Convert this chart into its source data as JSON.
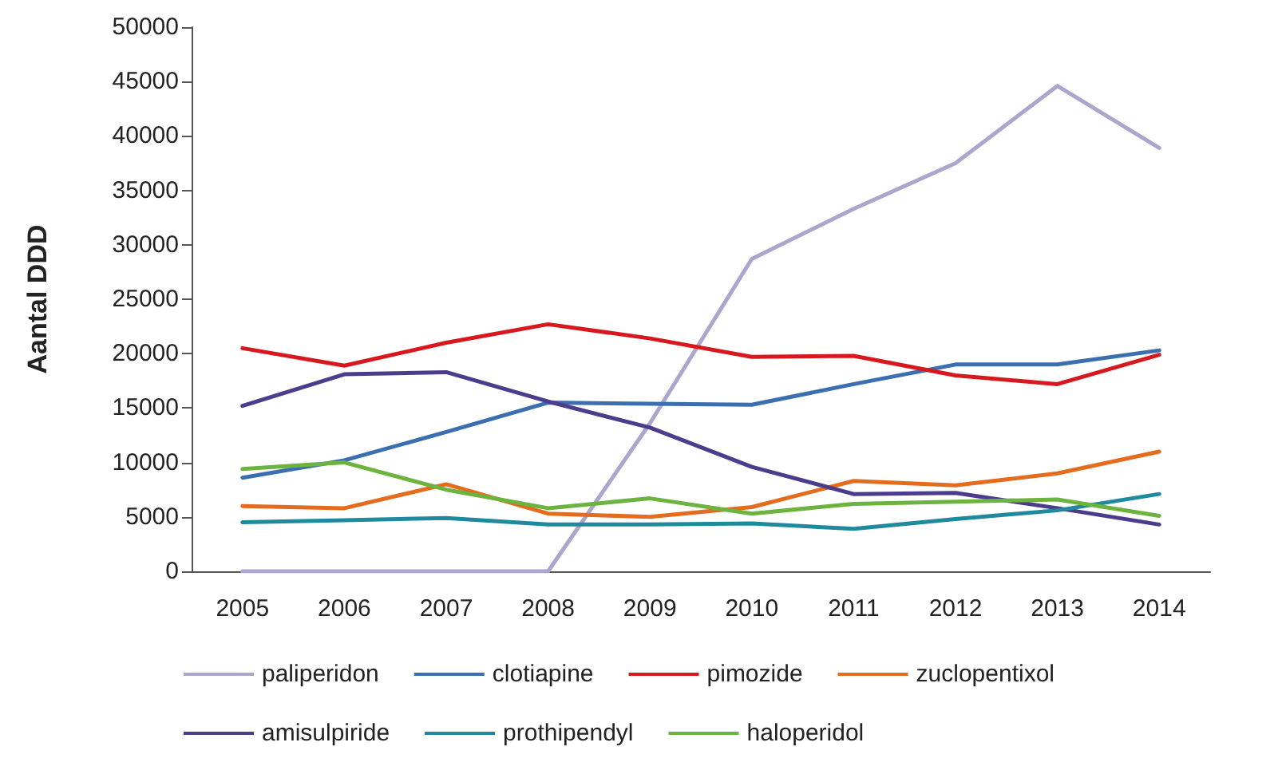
{
  "chart_data": {
    "type": "line",
    "ylabel": "Aantal DDD",
    "categories": [
      "2005",
      "2006",
      "2007",
      "2008",
      "2009",
      "2010",
      "2011",
      "2012",
      "2013",
      "2014"
    ],
    "series": [
      {
        "name": "paliperidon",
        "color": "#aba6cc",
        "values": [
          0,
          0,
          0,
          0,
          13600,
          28700,
          33300,
          37500,
          44600,
          38900
        ]
      },
      {
        "name": "clotiapine",
        "color": "#3b6fb0",
        "values": [
          8600,
          10200,
          12800,
          15500,
          15400,
          15300,
          17200,
          19000,
          19000,
          20300
        ]
      },
      {
        "name": "pimozide",
        "color": "#d7191f",
        "values": [
          20500,
          18900,
          21000,
          22700,
          21400,
          19700,
          19800,
          18000,
          17200,
          19900
        ]
      },
      {
        "name": "zuclopentixol",
        "color": "#e46c1e",
        "values": [
          6000,
          5800,
          8000,
          5300,
          5000,
          5900,
          8300,
          7900,
          9000,
          11000
        ]
      },
      {
        "name": "amisulpiride",
        "color": "#4b3c8c",
        "values": [
          15200,
          18100,
          18300,
          15600,
          13200,
          9600,
          7100,
          7200,
          5800,
          4300
        ]
      },
      {
        "name": "prothipendyl",
        "color": "#1f8a9e",
        "values": [
          4500,
          4700,
          4900,
          4300,
          4300,
          4400,
          3900,
          4800,
          5600,
          7100
        ]
      },
      {
        "name": "haloperidol",
        "color": "#6cb33f",
        "values": [
          9400,
          10000,
          7500,
          5800,
          6700,
          5300,
          6200,
          6400,
          6600,
          5100
        ]
      }
    ],
    "ylim": [
      0,
      50000
    ],
    "yticks": [
      0,
      5000,
      10000,
      15000,
      20000,
      25000,
      30000,
      35000,
      40000,
      45000,
      50000
    ],
    "grid": false,
    "legend": "bottom",
    "marker": "none",
    "line_style": "solid"
  }
}
